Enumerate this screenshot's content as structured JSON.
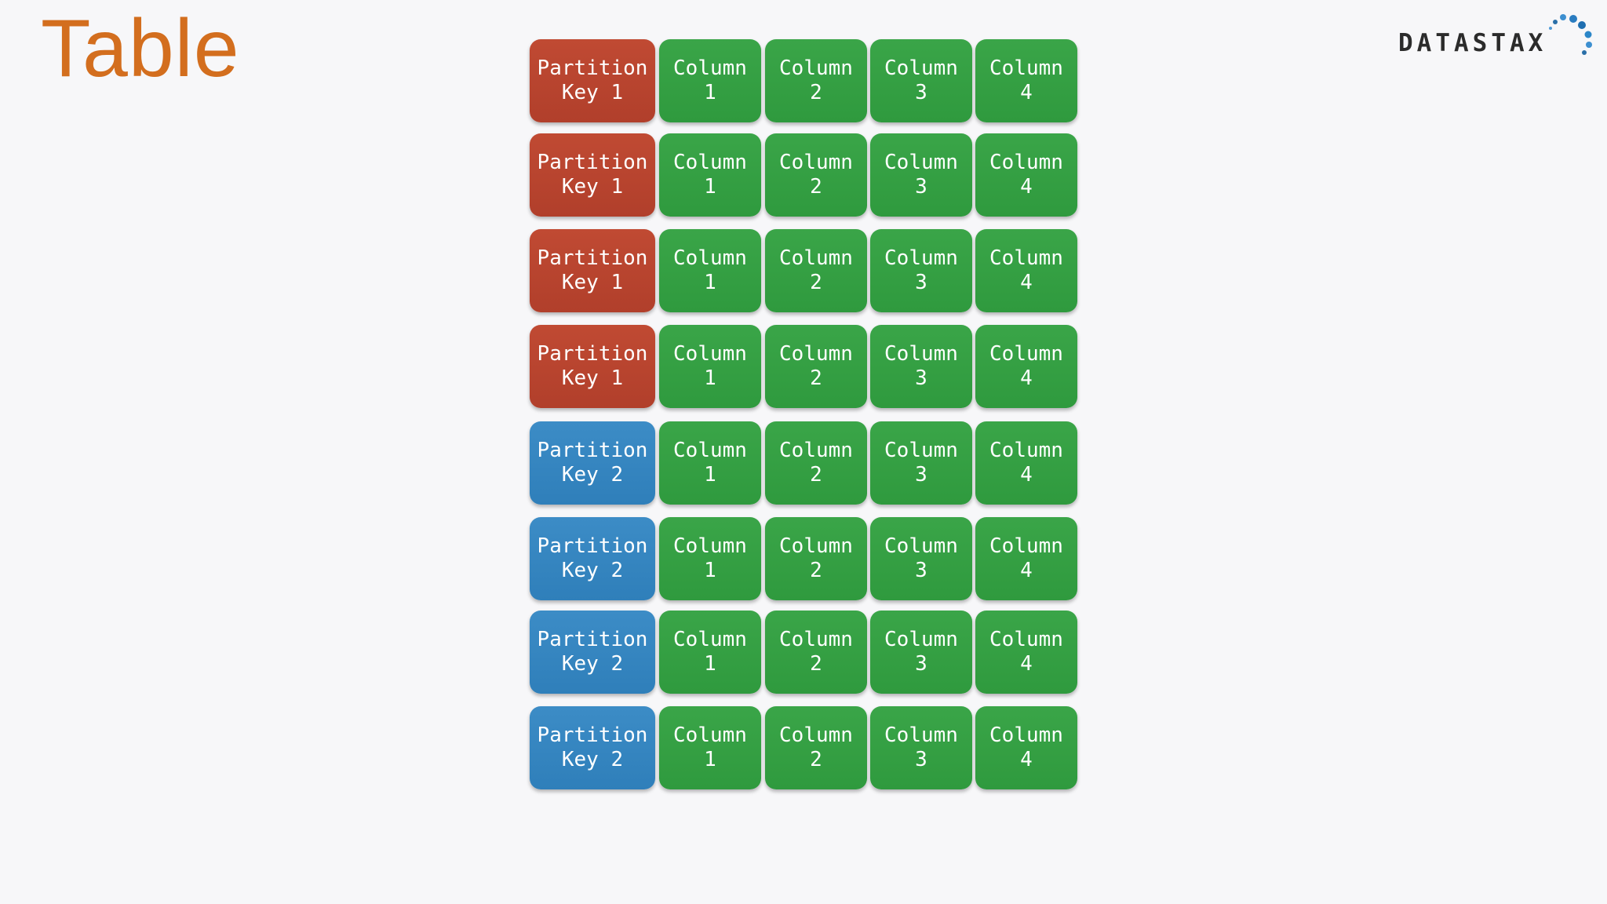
{
  "title": "Table",
  "logo": {
    "text": "DATASTAX",
    "icon": "datastax-dots-icon"
  },
  "colors": {
    "title": "#d36e1e",
    "partition_key_1": "#b8442f",
    "partition_key_2": "#3385c0",
    "column": "#34a043",
    "background": "#f7f7f9"
  },
  "table": {
    "rows": [
      {
        "key": "Partition\nKey 1",
        "group": "red",
        "columns": [
          "Column\n1",
          "Column\n2",
          "Column\n3",
          "Column\n4"
        ]
      },
      {
        "key": "Partition\nKey 1",
        "group": "red",
        "columns": [
          "Column\n1",
          "Column\n2",
          "Column\n3",
          "Column\n4"
        ]
      },
      {
        "key": "Partition\nKey 1",
        "group": "red",
        "columns": [
          "Column\n1",
          "Column\n2",
          "Column\n3",
          "Column\n4"
        ]
      },
      {
        "key": "Partition\nKey 1",
        "group": "red",
        "columns": [
          "Column\n1",
          "Column\n2",
          "Column\n3",
          "Column\n4"
        ]
      },
      {
        "key": "Partition\nKey 2",
        "group": "blue",
        "columns": [
          "Column\n1",
          "Column\n2",
          "Column\n3",
          "Column\n4"
        ]
      },
      {
        "key": "Partition\nKey 2",
        "group": "blue",
        "columns": [
          "Column\n1",
          "Column\n2",
          "Column\n3",
          "Column\n4"
        ]
      },
      {
        "key": "Partition\nKey 2",
        "group": "blue",
        "columns": [
          "Column\n1",
          "Column\n2",
          "Column\n3",
          "Column\n4"
        ]
      },
      {
        "key": "Partition\nKey 2",
        "group": "blue",
        "columns": [
          "Column\n1",
          "Column\n2",
          "Column\n3",
          "Column\n4"
        ]
      }
    ]
  }
}
